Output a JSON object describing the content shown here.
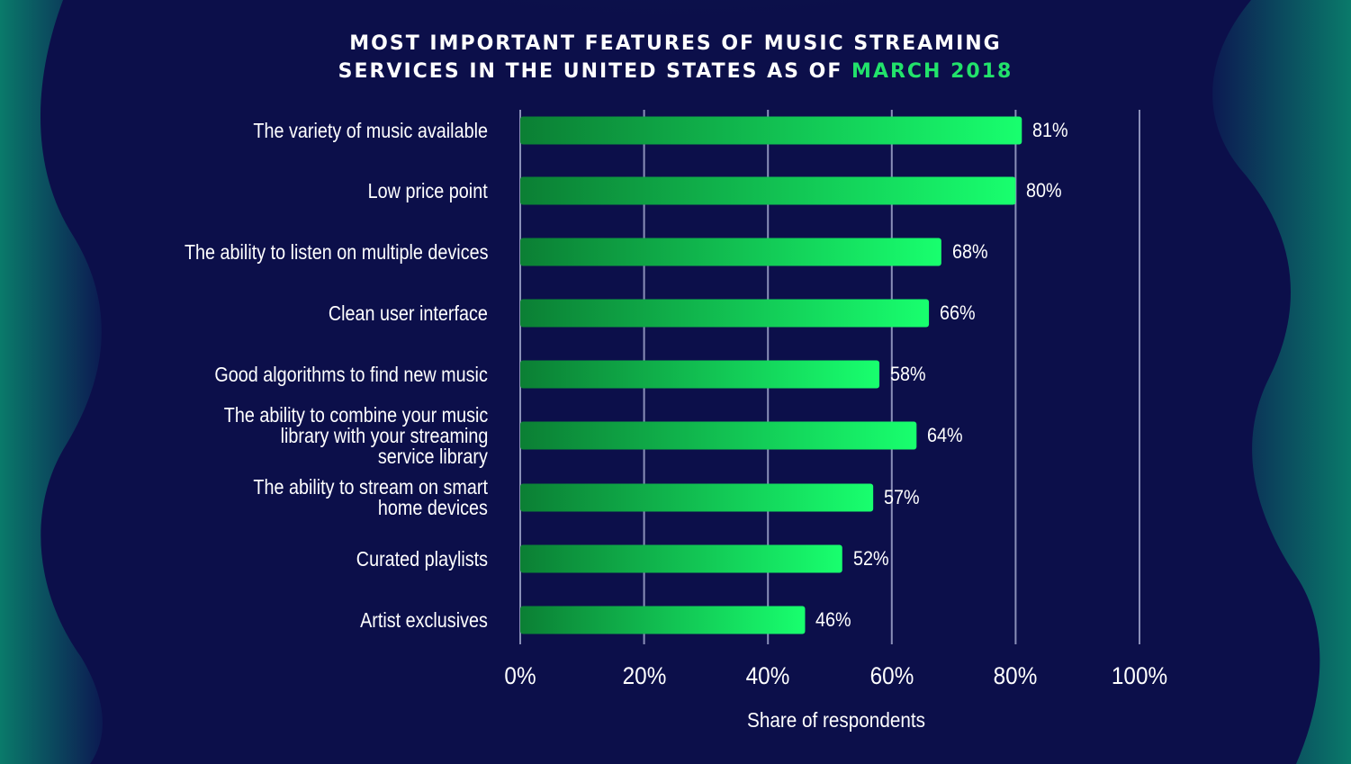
{
  "title": {
    "line1": "MOST IMPORTANT FEATURES OF MUSIC STREAMING",
    "line2_prefix": "SERVICES IN THE UNITED STATES AS OF ",
    "line2_highlight": "MARCH 2018"
  },
  "colors": {
    "background": "#0c0f4a",
    "blob": "#0a7a6a",
    "title_highlight": "#22e26b",
    "bar_start": "#0b7f34",
    "bar_end": "#18ff6e",
    "gridline": "#8a8fb8"
  },
  "chart_data": {
    "type": "bar",
    "orientation": "horizontal",
    "categories": [
      "The variety of music available",
      "Low price point",
      "The ability to listen on multiple devices",
      "Clean user interface",
      "Good algorithms to find new music",
      "The ability to combine your music library with your streaming service library",
      "The ability to stream on smart home devices",
      "Curated playlists",
      "Artist exclusives"
    ],
    "category_lines": [
      [
        "The variety of music available"
      ],
      [
        "Low price point"
      ],
      [
        "The ability to listen on multiple devices"
      ],
      [
        "Clean user interface"
      ],
      [
        "Good algorithms to find new music"
      ],
      [
        "The ability to combine your music",
        "library with your streaming",
        "service library"
      ],
      [
        "The ability to stream on smart",
        "home devices"
      ],
      [
        "Curated playlists"
      ],
      [
        "Artist exclusives"
      ]
    ],
    "values": [
      81,
      80,
      68,
      66,
      58,
      64,
      57,
      52,
      46
    ],
    "value_labels": [
      "81%",
      "80%",
      "68%",
      "66%",
      "58%",
      "64%",
      "57%",
      "52%",
      "46%"
    ],
    "xlim": [
      0,
      100
    ],
    "xticks": [
      0,
      20,
      40,
      60,
      80,
      100
    ],
    "xtick_labels": [
      "0%",
      "20%",
      "40%",
      "60%",
      "80%",
      "100%"
    ],
    "xlabel": "Share of respondents",
    "ylabel": "",
    "grid": true,
    "legend": "none"
  }
}
